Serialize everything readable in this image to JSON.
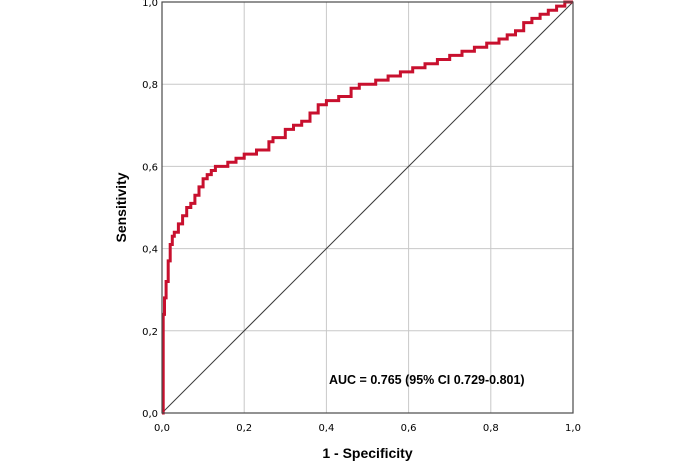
{
  "chart_data": {
    "type": "line",
    "xlabel": "1 - Specificity",
    "ylabel": "Sensitivity",
    "xlim": [
      0,
      1
    ],
    "ylim": [
      0,
      1
    ],
    "x_ticks": [
      "0,0",
      "0,2",
      "0,4",
      "0,6",
      "0,8",
      "1,0"
    ],
    "y_ticks": [
      "0,0",
      "0,2",
      "0,4",
      "0,6",
      "0,8",
      "1,0"
    ],
    "grid": true,
    "annotation": "AUC = 0.765 (95% CI 0.729-0.801)",
    "colors": {
      "roc": "#c8102e",
      "reference": "#3a3a3a",
      "grid": "#c8c8c8",
      "frame": "#4a4a4a"
    },
    "series": [
      {
        "x": [
          0,
          0.003,
          0.003,
          0.006,
          0.006,
          0.01,
          0.01,
          0.015,
          0.015,
          0.02,
          0.02,
          0.025,
          0.025,
          0.03,
          0.03,
          0.04,
          0.04,
          0.05,
          0.05,
          0.06,
          0.06,
          0.07,
          0.07,
          0.08,
          0.08,
          0.09,
          0.09,
          0.1,
          0.1,
          0.11,
          0.11,
          0.12,
          0.12,
          0.13,
          0.13,
          0.16,
          0.16,
          0.18,
          0.18,
          0.2,
          0.2,
          0.23,
          0.23,
          0.26,
          0.26,
          0.27,
          0.27,
          0.3,
          0.3,
          0.32,
          0.32,
          0.34,
          0.34,
          0.36,
          0.36,
          0.38,
          0.38,
          0.4,
          0.4,
          0.43,
          0.43,
          0.46,
          0.46,
          0.48,
          0.48,
          0.52,
          0.52,
          0.55,
          0.55,
          0.58,
          0.58,
          0.61,
          0.61,
          0.64,
          0.64,
          0.67,
          0.67,
          0.7,
          0.7,
          0.73,
          0.73,
          0.76,
          0.76,
          0.79,
          0.79,
          0.82,
          0.82,
          0.84,
          0.84,
          0.86,
          0.86,
          0.88,
          0.88,
          0.9,
          0.9,
          0.92,
          0.92,
          0.94,
          0.94,
          0.96,
          0.96,
          0.98,
          0.98,
          1.0
        ],
        "y": [
          0,
          0,
          0.24,
          0.24,
          0.28,
          0.28,
          0.32,
          0.32,
          0.37,
          0.37,
          0.41,
          0.41,
          0.43,
          0.43,
          0.44,
          0.44,
          0.46,
          0.46,
          0.48,
          0.48,
          0.5,
          0.5,
          0.51,
          0.51,
          0.53,
          0.53,
          0.55,
          0.55,
          0.57,
          0.57,
          0.58,
          0.58,
          0.59,
          0.59,
          0.6,
          0.6,
          0.61,
          0.61,
          0.62,
          0.62,
          0.63,
          0.63,
          0.64,
          0.64,
          0.66,
          0.66,
          0.67,
          0.67,
          0.69,
          0.69,
          0.7,
          0.7,
          0.71,
          0.71,
          0.73,
          0.73,
          0.75,
          0.75,
          0.76,
          0.76,
          0.77,
          0.77,
          0.79,
          0.79,
          0.8,
          0.8,
          0.81,
          0.81,
          0.82,
          0.82,
          0.83,
          0.83,
          0.84,
          0.84,
          0.85,
          0.85,
          0.86,
          0.86,
          0.87,
          0.87,
          0.88,
          0.88,
          0.89,
          0.89,
          0.9,
          0.9,
          0.91,
          0.91,
          0.92,
          0.92,
          0.93,
          0.93,
          0.95,
          0.95,
          0.96,
          0.96,
          0.97,
          0.97,
          0.98,
          0.98,
          0.99,
          0.99,
          1.0,
          1.0
        ]
      },
      {
        "x": [
          0,
          1
        ],
        "y": [
          0,
          1
        ]
      }
    ]
  }
}
